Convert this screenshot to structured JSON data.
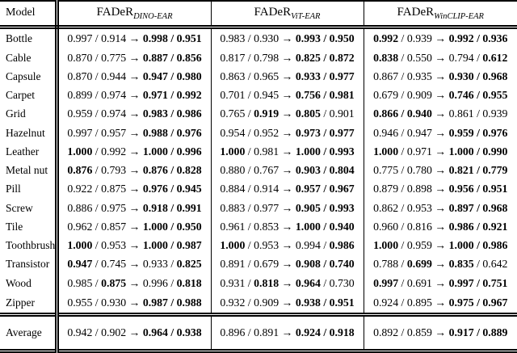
{
  "table": {
    "header": {
      "model_label": "Model",
      "columns": [
        {
          "name": "FADeR",
          "subscript": "DINO-EAR"
        },
        {
          "name": "FADeR",
          "subscript": "ViT-EAR"
        },
        {
          "name": "FADeR",
          "subscript": "WinCLIP-EAR"
        }
      ]
    },
    "format": {
      "separator": "/",
      "arrow": "→"
    },
    "rows": [
      {
        "model": "Bottle",
        "cells": [
          {
            "values": [
              "0.997",
              "0.914",
              "0.998",
              "0.951"
            ],
            "bold": [
              false,
              false,
              true,
              true
            ]
          },
          {
            "values": [
              "0.983",
              "0.930",
              "0.993",
              "0.950"
            ],
            "bold": [
              false,
              false,
              true,
              true
            ]
          },
          {
            "values": [
              "0.992",
              "0.939",
              "0.992",
              "0.936"
            ],
            "bold": [
              true,
              false,
              true,
              true
            ]
          }
        ]
      },
      {
        "model": "Cable",
        "cells": [
          {
            "values": [
              "0.870",
              "0.775",
              "0.887",
              "0.856"
            ],
            "bold": [
              false,
              false,
              true,
              true
            ]
          },
          {
            "values": [
              "0.817",
              "0.798",
              "0.825",
              "0.872"
            ],
            "bold": [
              false,
              false,
              true,
              true
            ]
          },
          {
            "values": [
              "0.838",
              "0.550",
              "0.794",
              "0.612"
            ],
            "bold": [
              true,
              false,
              false,
              true
            ]
          }
        ]
      },
      {
        "model": "Capsule",
        "cells": [
          {
            "values": [
              "0.870",
              "0.944",
              "0.947",
              "0.980"
            ],
            "bold": [
              false,
              false,
              true,
              true
            ]
          },
          {
            "values": [
              "0.863",
              "0.965",
              "0.933",
              "0.977"
            ],
            "bold": [
              false,
              false,
              true,
              true
            ]
          },
          {
            "values": [
              "0.867",
              "0.935",
              "0.930",
              "0.968"
            ],
            "bold": [
              false,
              false,
              true,
              true
            ]
          }
        ]
      },
      {
        "model": "Carpet",
        "cells": [
          {
            "values": [
              "0.899",
              "0.974",
              "0.971",
              "0.992"
            ],
            "bold": [
              false,
              false,
              true,
              true
            ]
          },
          {
            "values": [
              "0.701",
              "0.945",
              "0.756",
              "0.981"
            ],
            "bold": [
              false,
              false,
              true,
              true
            ]
          },
          {
            "values": [
              "0.679",
              "0.909",
              "0.746",
              "0.955"
            ],
            "bold": [
              false,
              false,
              true,
              true
            ]
          }
        ]
      },
      {
        "model": "Grid",
        "cells": [
          {
            "values": [
              "0.959",
              "0.974",
              "0.983",
              "0.986"
            ],
            "bold": [
              false,
              false,
              true,
              true
            ]
          },
          {
            "values": [
              "0.765",
              "0.919",
              "0.805",
              "0.901"
            ],
            "bold": [
              false,
              true,
              true,
              false
            ]
          },
          {
            "values": [
              "0.866",
              "0.940",
              "0.861",
              "0.939"
            ],
            "bold": [
              true,
              true,
              false,
              false
            ]
          }
        ]
      },
      {
        "model": "Hazelnut",
        "cells": [
          {
            "values": [
              "0.997",
              "0.957",
              "0.988",
              "0.976"
            ],
            "bold": [
              false,
              false,
              true,
              true
            ]
          },
          {
            "values": [
              "0.954",
              "0.952",
              "0.973",
              "0.977"
            ],
            "bold": [
              false,
              false,
              true,
              true
            ]
          },
          {
            "values": [
              "0.946",
              "0.947",
              "0.959",
              "0.976"
            ],
            "bold": [
              false,
              false,
              true,
              true
            ]
          }
        ]
      },
      {
        "model": "Leather",
        "cells": [
          {
            "values": [
              "1.000",
              "0.992",
              "1.000",
              "0.996"
            ],
            "bold": [
              true,
              false,
              true,
              true
            ]
          },
          {
            "values": [
              "1.000",
              "0.981",
              "1.000",
              "0.993"
            ],
            "bold": [
              true,
              false,
              true,
              true
            ]
          },
          {
            "values": [
              "1.000",
              "0.971",
              "1.000",
              "0.990"
            ],
            "bold": [
              true,
              false,
              true,
              true
            ]
          }
        ]
      },
      {
        "model": "Metal nut",
        "cells": [
          {
            "values": [
              "0.876",
              "0.793",
              "0.876",
              "0.828"
            ],
            "bold": [
              true,
              false,
              true,
              true
            ]
          },
          {
            "values": [
              "0.880",
              "0.767",
              "0.903",
              "0.804"
            ],
            "bold": [
              false,
              false,
              true,
              true
            ]
          },
          {
            "values": [
              "0.775",
              "0.780",
              "0.821",
              "0.779"
            ],
            "bold": [
              false,
              false,
              true,
              true
            ]
          }
        ]
      },
      {
        "model": "Pill",
        "cells": [
          {
            "values": [
              "0.922",
              "0.875",
              "0.976",
              "0.945"
            ],
            "bold": [
              false,
              false,
              true,
              true
            ]
          },
          {
            "values": [
              "0.884",
              "0.914",
              "0.957",
              "0.967"
            ],
            "bold": [
              false,
              false,
              true,
              true
            ]
          },
          {
            "values": [
              "0.879",
              "0.898",
              "0.956",
              "0.951"
            ],
            "bold": [
              false,
              false,
              true,
              true
            ]
          }
        ]
      },
      {
        "model": "Screw",
        "cells": [
          {
            "values": [
              "0.886",
              "0.975",
              "0.918",
              "0.991"
            ],
            "bold": [
              false,
              false,
              true,
              true
            ]
          },
          {
            "values": [
              "0.883",
              "0.977",
              "0.905",
              "0.993"
            ],
            "bold": [
              false,
              false,
              true,
              true
            ]
          },
          {
            "values": [
              "0.862",
              "0.953",
              "0.897",
              "0.968"
            ],
            "bold": [
              false,
              false,
              true,
              true
            ]
          }
        ]
      },
      {
        "model": "Tile",
        "cells": [
          {
            "values": [
              "0.962",
              "0.857",
              "1.000",
              "0.950"
            ],
            "bold": [
              false,
              false,
              true,
              true
            ]
          },
          {
            "values": [
              "0.961",
              "0.853",
              "1.000",
              "0.940"
            ],
            "bold": [
              false,
              false,
              true,
              true
            ]
          },
          {
            "values": [
              "0.960",
              "0.816",
              "0.986",
              "0.921"
            ],
            "bold": [
              false,
              false,
              true,
              true
            ]
          }
        ]
      },
      {
        "model": "Toothbrush",
        "cells": [
          {
            "values": [
              "1.000",
              "0.953",
              "1.000",
              "0.987"
            ],
            "bold": [
              true,
              false,
              true,
              true
            ]
          },
          {
            "values": [
              "1.000",
              "0.953",
              "0.994",
              "0.986"
            ],
            "bold": [
              true,
              false,
              false,
              true
            ]
          },
          {
            "values": [
              "1.000",
              "0.959",
              "1.000",
              "0.986"
            ],
            "bold": [
              true,
              false,
              true,
              true
            ]
          }
        ]
      },
      {
        "model": "Transistor",
        "cells": [
          {
            "values": [
              "0.947",
              "0.745",
              "0.933",
              "0.825"
            ],
            "bold": [
              true,
              false,
              false,
              true
            ]
          },
          {
            "values": [
              "0.891",
              "0.679",
              "0.908",
              "0.740"
            ],
            "bold": [
              false,
              false,
              true,
              true
            ]
          },
          {
            "values": [
              "0.788",
              "0.699",
              "0.835",
              "0.642"
            ],
            "bold": [
              false,
              true,
              true,
              false
            ]
          }
        ]
      },
      {
        "model": "Wood",
        "cells": [
          {
            "values": [
              "0.985",
              "0.875",
              "0.996",
              "0.818"
            ],
            "bold": [
              false,
              true,
              false,
              true
            ]
          },
          {
            "values": [
              "0.931",
              "0.818",
              "0.964",
              "0.730"
            ],
            "bold": [
              false,
              true,
              true,
              false
            ]
          },
          {
            "values": [
              "0.997",
              "0.691",
              "0.997",
              "0.751"
            ],
            "bold": [
              true,
              false,
              true,
              true
            ]
          }
        ]
      },
      {
        "model": "Zipper",
        "cells": [
          {
            "values": [
              "0.955",
              "0.930",
              "0.987",
              "0.988"
            ],
            "bold": [
              false,
              false,
              true,
              true
            ]
          },
          {
            "values": [
              "0.932",
              "0.909",
              "0.938",
              "0.951"
            ],
            "bold": [
              false,
              false,
              true,
              true
            ]
          },
          {
            "values": [
              "0.924",
              "0.895",
              "0.975",
              "0.967"
            ],
            "bold": [
              false,
              false,
              true,
              true
            ]
          }
        ]
      }
    ],
    "average": {
      "model": "Average",
      "cells": [
        {
          "values": [
            "0.942",
            "0.902",
            "0.964",
            "0.938"
          ],
          "bold": [
            false,
            false,
            true,
            true
          ]
        },
        {
          "values": [
            "0.896",
            "0.891",
            "0.924",
            "0.918"
          ],
          "bold": [
            false,
            false,
            true,
            true
          ]
        },
        {
          "values": [
            "0.892",
            "0.859",
            "0.917",
            "0.889"
          ],
          "bold": [
            false,
            false,
            true,
            true
          ]
        }
      ]
    }
  }
}
